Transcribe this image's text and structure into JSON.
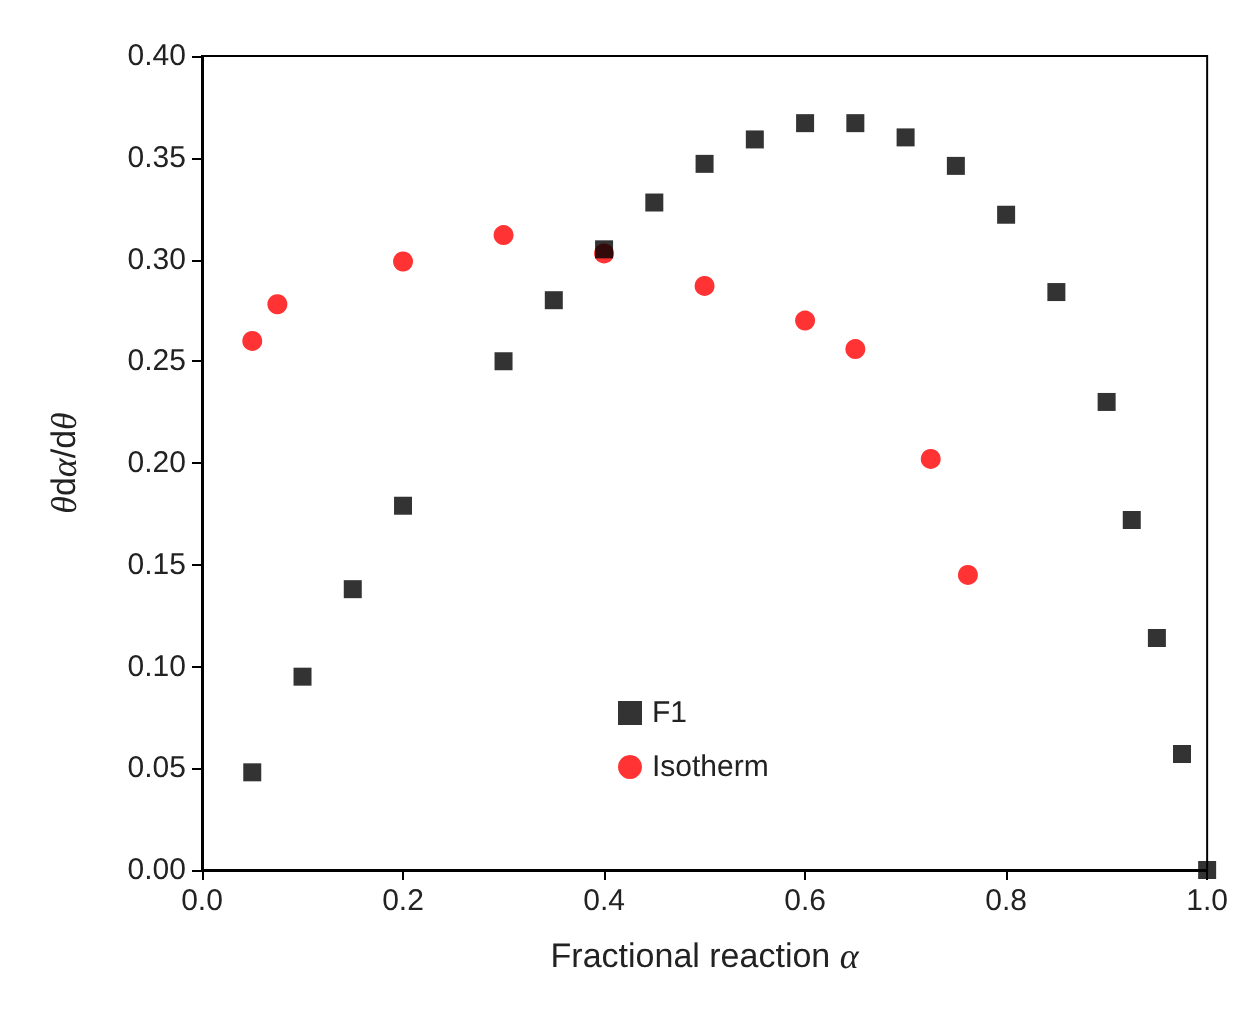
{
  "chart_data": {
    "type": "scatter",
    "xlabel": "Fractional reaction α",
    "ylabel": "θdα/dθ",
    "xlim": [
      0,
      1
    ],
    "ylim": [
      0,
      0.4
    ],
    "xticks": [
      {
        "value": 0,
        "label": "0.0"
      },
      {
        "value": 0.2,
        "label": "0.2"
      },
      {
        "value": 0.4,
        "label": "0.4"
      },
      {
        "value": 0.6,
        "label": "0.6"
      },
      {
        "value": 0.8,
        "label": "0.8"
      },
      {
        "value": 1,
        "label": "1.0"
      }
    ],
    "yticks": [
      {
        "value": 0,
        "label": "0.00"
      },
      {
        "value": 0.05,
        "label": "0.05"
      },
      {
        "value": 0.1,
        "label": "0.10"
      },
      {
        "value": 0.15,
        "label": "0.15"
      },
      {
        "value": 0.2,
        "label": "0.20"
      },
      {
        "value": 0.25,
        "label": "0.25"
      },
      {
        "value": 0.3,
        "label": "0.30"
      },
      {
        "value": 0.35,
        "label": "0.35"
      },
      {
        "value": 0.4,
        "label": "0.40"
      }
    ],
    "legend": "bottom",
    "grid": false,
    "series": [
      {
        "name": "F1",
        "color": "#000000",
        "marker": "square",
        "x": [
          0.05,
          0.1,
          0.15,
          0.2,
          0.3,
          0.35,
          0.4,
          0.45,
          0.5,
          0.55,
          0.6,
          0.65,
          0.7,
          0.75,
          0.8,
          0.85,
          0.9,
          0.925,
          0.95,
          0.975,
          1.0
        ],
        "values": [
          0.048,
          0.095,
          0.138,
          0.179,
          0.25,
          0.28,
          0.305,
          0.328,
          0.347,
          0.359,
          0.367,
          0.367,
          0.36,
          0.346,
          0.322,
          0.284,
          0.23,
          0.172,
          0.114,
          0.057,
          0.0
        ]
      },
      {
        "name": "Isotherm",
        "color": "#ff0000",
        "marker": "circle",
        "x": [
          0.05,
          0.075,
          0.2,
          0.3,
          0.4,
          0.5,
          0.6,
          0.65,
          0.725,
          0.762
        ],
        "values": [
          0.26,
          0.278,
          0.299,
          0.312,
          0.303,
          0.287,
          0.27,
          0.256,
          0.202,
          0.145
        ]
      }
    ]
  }
}
